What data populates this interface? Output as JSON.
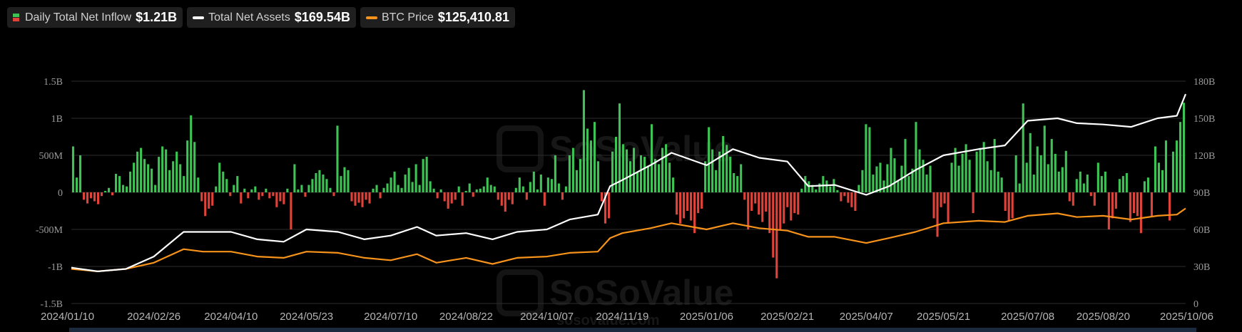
{
  "legend": {
    "inflow": {
      "label": "Daily Total Net Inflow",
      "value": "$1.21B",
      "icon": "red-green-bar-icon"
    },
    "assets": {
      "label": "Total Net Assets",
      "value": "$169.54B",
      "color": "#ffffff"
    },
    "btc": {
      "label": "BTC Price",
      "value": "$125,410.81",
      "color": "#f7931a"
    }
  },
  "watermark": "SoSoValue",
  "watermark_sub": "sosovalue.com",
  "chart_data": {
    "type": "bar+line",
    "x_ticks": [
      "2024/01/10",
      "2024/02/26",
      "2024/04/10",
      "2024/05/23",
      "2024/07/10",
      "2024/08/22",
      "2024/10/07",
      "2024/11/19",
      "2025/01/06",
      "2025/02/21",
      "2025/04/07",
      "2025/05/21",
      "2025/07/08",
      "2025/08/20",
      "2025/10/06"
    ],
    "left_axis": {
      "labels": [
        "1.5B",
        "1B",
        "500M",
        "0",
        "-500M",
        "-1B",
        "-1.5B"
      ],
      "ylim": [
        -1.5,
        1.5
      ],
      "unit": "B"
    },
    "right_axis": {
      "labels": [
        "180B",
        "150B",
        "120B",
        "90B",
        "60B",
        "30B",
        "0"
      ],
      "ylim": [
        0,
        180
      ],
      "unit": "B"
    },
    "inflow_color_positive": "#3ec454",
    "inflow_color_negative": "#e0433a",
    "series": [
      {
        "key": "total_net_assets",
        "color": "#ffffff",
        "points": [
          [
            "2024/01/10",
            29
          ],
          [
            "2024/01/25",
            26
          ],
          [
            "2024/02/10",
            28
          ],
          [
            "2024/02/26",
            38
          ],
          [
            "2024/03/14",
            58
          ],
          [
            "2024/03/25",
            58
          ],
          [
            "2024/04/10",
            58
          ],
          [
            "2024/04/25",
            52
          ],
          [
            "2024/05/10",
            50
          ],
          [
            "2024/05/23",
            60
          ],
          [
            "2024/06/10",
            58
          ],
          [
            "2024/06/25",
            52
          ],
          [
            "2024/07/10",
            55
          ],
          [
            "2024/07/25",
            62
          ],
          [
            "2024/08/05",
            55
          ],
          [
            "2024/08/22",
            57
          ],
          [
            "2024/09/06",
            52
          ],
          [
            "2024/09/20",
            58
          ],
          [
            "2024/10/07",
            60
          ],
          [
            "2024/10/20",
            68
          ],
          [
            "2024/11/05",
            72
          ],
          [
            "2024/11/12",
            95
          ],
          [
            "2024/11/19",
            100
          ],
          [
            "2024/12/05",
            112
          ],
          [
            "2024/12/17",
            122
          ],
          [
            "2025/01/06",
            112
          ],
          [
            "2025/01/21",
            125
          ],
          [
            "2025/02/05",
            118
          ],
          [
            "2025/02/21",
            115
          ],
          [
            "2025/03/05",
            95
          ],
          [
            "2025/03/20",
            96
          ],
          [
            "2025/04/07",
            88
          ],
          [
            "2025/04/20",
            95
          ],
          [
            "2025/05/05",
            108
          ],
          [
            "2025/05/21",
            120
          ],
          [
            "2025/06/10",
            125
          ],
          [
            "2025/06/25",
            128
          ],
          [
            "2025/07/08",
            148
          ],
          [
            "2025/07/25",
            150
          ],
          [
            "2025/08/05",
            146
          ],
          [
            "2025/08/20",
            145
          ],
          [
            "2025/09/05",
            143
          ],
          [
            "2025/09/20",
            150
          ],
          [
            "2025/10/01",
            152
          ],
          [
            "2025/10/06",
            169.54
          ]
        ]
      },
      {
        "key": "btc_price",
        "color": "#f7931a",
        "points": [
          [
            "2024/01/10",
            28
          ],
          [
            "2024/01/25",
            26
          ],
          [
            "2024/02/10",
            28
          ],
          [
            "2024/02/26",
            33
          ],
          [
            "2024/03/14",
            44
          ],
          [
            "2024/03/25",
            42
          ],
          [
            "2024/04/10",
            42
          ],
          [
            "2024/04/25",
            38
          ],
          [
            "2024/05/10",
            37
          ],
          [
            "2024/05/23",
            42
          ],
          [
            "2024/06/10",
            41
          ],
          [
            "2024/06/25",
            37
          ],
          [
            "2024/07/10",
            35
          ],
          [
            "2024/07/25",
            40
          ],
          [
            "2024/08/05",
            33
          ],
          [
            "2024/08/22",
            37
          ],
          [
            "2024/09/06",
            32
          ],
          [
            "2024/09/20",
            37
          ],
          [
            "2024/10/07",
            38
          ],
          [
            "2024/10/20",
            41
          ],
          [
            "2024/11/05",
            42
          ],
          [
            "2024/11/12",
            53
          ],
          [
            "2024/11/19",
            57
          ],
          [
            "2024/12/05",
            61
          ],
          [
            "2024/12/17",
            65
          ],
          [
            "2025/01/06",
            60
          ],
          [
            "2025/01/21",
            65
          ],
          [
            "2025/02/05",
            61
          ],
          [
            "2025/02/21",
            59
          ],
          [
            "2025/03/05",
            54
          ],
          [
            "2025/03/20",
            54
          ],
          [
            "2025/04/07",
            49
          ],
          [
            "2025/04/20",
            53
          ],
          [
            "2025/05/05",
            58
          ],
          [
            "2025/05/21",
            65
          ],
          [
            "2025/06/10",
            67
          ],
          [
            "2025/06/25",
            66
          ],
          [
            "2025/07/08",
            71
          ],
          [
            "2025/07/25",
            73
          ],
          [
            "2025/08/05",
            70
          ],
          [
            "2025/08/20",
            71
          ],
          [
            "2025/09/05",
            68
          ],
          [
            "2025/09/20",
            71
          ],
          [
            "2025/10/01",
            72
          ],
          [
            "2025/10/06",
            77
          ]
        ]
      }
    ],
    "inflow_bars": [
      0.62,
      0.2,
      0.5,
      -0.1,
      -0.15,
      -0.08,
      -0.12,
      -0.16,
      -0.05,
      0.02,
      0.06,
      -0.04,
      0.25,
      0.22,
      0.1,
      0.08,
      0.28,
      0.4,
      0.55,
      0.6,
      0.45,
      0.38,
      0.32,
      0.1,
      0.48,
      0.62,
      0.58,
      0.3,
      0.42,
      0.55,
      0.38,
      0.22,
      0.7,
      1.04,
      0.68,
      0.2,
      -0.12,
      -0.32,
      -0.22,
      -0.18,
      0.08,
      0.4,
      0.28,
      0.18,
      -0.05,
      0.1,
      0.22,
      -0.15,
      0.05,
      -0.08,
      0.04,
      0.08,
      -0.1,
      -0.05,
      0.05,
      -0.08,
      -0.05,
      -0.2,
      -0.12,
      -0.16,
      0.05,
      -0.5,
      0.38,
      0.04,
      0.1,
      -0.06,
      0.1,
      0.18,
      0.26,
      0.3,
      0.24,
      0.18,
      0.06,
      -0.05,
      0.9,
      0.22,
      0.34,
      0.3,
      -0.12,
      -0.18,
      -0.14,
      -0.2,
      -0.1,
      -0.15,
      0.05,
      0.1,
      -0.08,
      0.06,
      0.12,
      0.2,
      0.28,
      0.1,
      0.06,
      0.24,
      0.33,
      0.14,
      0.38,
      0.1,
      0.45,
      0.48,
      0.15,
      0.05,
      -0.08,
      0.04,
      -0.12,
      -0.22,
      -0.15,
      -0.1,
      0.08,
      -0.18,
      0.02,
      0.12,
      -0.06,
      0.04,
      0.05,
      0.08,
      0.2,
      0.1,
      0.08,
      -0.1,
      -0.18,
      -0.26,
      -0.1,
      -0.16,
      0.06,
      0.2,
      0.08,
      -0.1,
      0.14,
      0.28,
      0.04,
      0.24,
      -0.18,
      0.2,
      0.18,
      0.5,
      0.12,
      -0.1,
      0.08,
      0.5,
      0.6,
      0.3,
      0.45,
      1.38,
      0.86,
      0.7,
      0.95,
      0.42,
      -0.12,
      -0.42,
      -0.35,
      0.55,
      0.75,
      1.2,
      0.65,
      0.58,
      0.42,
      0.6,
      0.28,
      0.5,
      0.48,
      0.36,
      0.92,
      0.45,
      0.38,
      0.6,
      0.65,
      0.4,
      0.2,
      -0.3,
      -0.42,
      -0.35,
      -0.25,
      -0.38,
      -0.55,
      -0.28,
      -0.22,
      0.42,
      0.88,
      0.58,
      0.3,
      0.55,
      0.76,
      0.64,
      0.48,
      0.26,
      0.22,
      0.38,
      -0.1,
      -0.5,
      -0.25,
      -0.15,
      -0.3,
      -0.4,
      -0.26,
      -0.55,
      -0.88,
      -1.16,
      -0.5,
      -0.42,
      -0.2,
      -0.38,
      -0.28,
      -0.3,
      0.05,
      0.22,
      0.15,
      0.1,
      0.04,
      0.12,
      0.22,
      0.16,
      0.08,
      0.18,
      0.03,
      -0.12,
      -0.05,
      -0.14,
      -0.2,
      -0.25,
      0.1,
      0.3,
      0.92,
      0.88,
      0.24,
      0.35,
      0.4,
      0.16,
      0.38,
      0.6,
      0.46,
      0.16,
      0.36,
      0.72,
      0.22,
      0.32,
      0.95,
      0.58,
      0.44,
      0.24,
      0.36,
      -0.35,
      -0.6,
      -0.2,
      -0.15,
      -0.42,
      0.4,
      0.6,
      0.36,
      0.52,
      0.65,
      0.44,
      -0.28,
      0.55,
      0.6,
      0.68,
      0.42,
      0.3,
      0.72,
      0.28,
      0.2,
      -0.25,
      -0.38,
      -0.35,
      0.5,
      0.12,
      1.2,
      0.4,
      0.8,
      0.24,
      0.62,
      0.5,
      0.9,
      0.38,
      0.72,
      0.52,
      0.28,
      0.34,
      0.56,
      -0.12,
      -0.18,
      0.18,
      0.28,
      0.12,
      0.24,
      -0.05,
      -0.18,
      0.4,
      0.22,
      0.28,
      -0.5,
      -0.35,
      -0.22,
      0.18,
      0.22,
      0.26,
      -0.4,
      -0.28,
      -0.32,
      -0.55,
      0.15,
      0.2,
      -0.32,
      0.62,
      0.4,
      0.3,
      0.7,
      -0.38,
      0.55,
      0.7,
      0.95,
      1.21
    ]
  }
}
